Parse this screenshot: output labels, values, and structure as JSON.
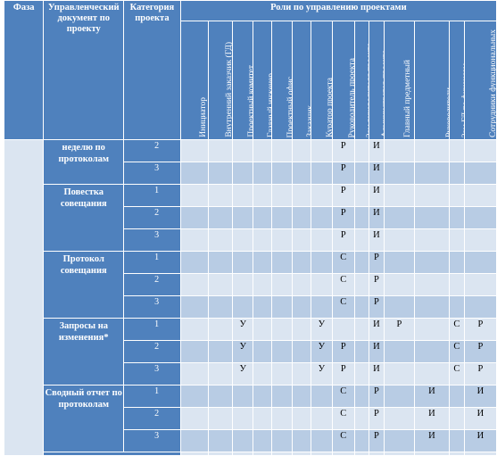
{
  "header": {
    "phase": "Фаза",
    "doc": "Управленческий документ по проекту",
    "category": "Категория проекта",
    "roles_title": "Роли по управлению проектами",
    "roles": [
      "Инициатор",
      "Внутренний заказчик (ГД)",
      "Проектный комитет",
      "Главный инженер",
      "Проектный офис",
      "Заказчик",
      "Куратор проекта",
      "Руководитель проекта",
      "Зам.руководителя проекта",
      "Администратор проекта",
      "Главный предметный",
      "Руководители функциональных подразделений",
      "Зам.ГД по финансам",
      "Сотрудники функциональных подразделений"
    ]
  },
  "rows": [
    {
      "doc": "неделю по протоколам",
      "cat": "2",
      "cells": [
        "",
        "",
        "",
        "",
        "",
        "",
        "",
        "Р",
        "",
        "И",
        "",
        "",
        "",
        ""
      ]
    },
    {
      "doc": "",
      "cat": "3",
      "cells": [
        "",
        "",
        "",
        "",
        "",
        "",
        "",
        "Р",
        "",
        "И",
        "",
        "",
        "",
        ""
      ]
    },
    {
      "doc": "Повестка совещания",
      "cat": "1",
      "cells": [
        "",
        "",
        "",
        "",
        "",
        "",
        "",
        "Р",
        "",
        "И",
        "",
        "",
        "",
        ""
      ]
    },
    {
      "doc": "",
      "cat": "2",
      "cells": [
        "",
        "",
        "",
        "",
        "",
        "",
        "",
        "Р",
        "",
        "И",
        "",
        "",
        "",
        ""
      ]
    },
    {
      "doc": "",
      "cat": "3",
      "cells": [
        "",
        "",
        "",
        "",
        "",
        "",
        "",
        "Р",
        "",
        "И",
        "",
        "",
        "",
        ""
      ]
    },
    {
      "doc": "Протокол совещания",
      "cat": "1",
      "cells": [
        "",
        "",
        "",
        "",
        "",
        "",
        "",
        "С",
        "",
        "Р",
        "",
        "",
        "",
        ""
      ]
    },
    {
      "doc": "",
      "cat": "2",
      "cells": [
        "",
        "",
        "",
        "",
        "",
        "",
        "",
        "С",
        "",
        "Р",
        "",
        "",
        "",
        ""
      ]
    },
    {
      "doc": "",
      "cat": "3",
      "cells": [
        "",
        "",
        "",
        "",
        "",
        "",
        "",
        "С",
        "",
        "Р",
        "",
        "",
        "",
        ""
      ]
    },
    {
      "doc": "Запросы на изменения*",
      "cat": "1",
      "cells": [
        "",
        "",
        "У",
        "",
        "",
        "",
        "У",
        "",
        "",
        "И",
        "Р",
        "",
        "С",
        "Р"
      ]
    },
    {
      "doc": "",
      "cat": "2",
      "cells": [
        "",
        "",
        "У",
        "",
        "",
        "",
        "У",
        "Р",
        "",
        "И",
        "",
        "",
        "С",
        "Р"
      ]
    },
    {
      "doc": "",
      "cat": "3",
      "cells": [
        "",
        "",
        "У",
        "",
        "",
        "",
        "У",
        "Р",
        "",
        "И",
        "",
        "",
        "С",
        "Р"
      ]
    },
    {
      "doc": "Сводный отчет по протоколам",
      "cat": "1",
      "cells": [
        "",
        "",
        "",
        "",
        "",
        "",
        "",
        "С",
        "",
        "Р",
        "",
        "И",
        "",
        "И"
      ]
    },
    {
      "doc": "",
      "cat": "2",
      "cells": [
        "",
        "",
        "",
        "",
        "",
        "",
        "",
        "С",
        "",
        "Р",
        "",
        "И",
        "",
        "И"
      ]
    },
    {
      "doc": "",
      "cat": "3",
      "cells": [
        "",
        "",
        "",
        "",
        "",
        "",
        "",
        "С",
        "",
        "Р",
        "",
        "И",
        "",
        "И"
      ]
    }
  ]
}
